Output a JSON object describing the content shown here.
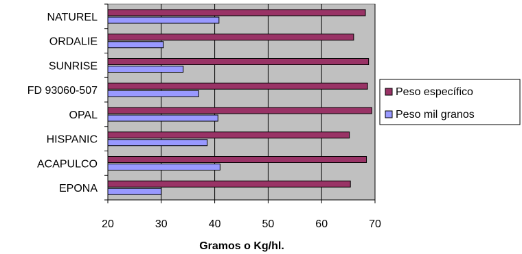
{
  "chart_data": {
    "type": "bar",
    "orientation": "horizontal",
    "categories": [
      "NATUREL",
      "ORDALIE",
      "SUNRISE",
      "FD 93060-507",
      "OPAL",
      "HISPANIC",
      "ACAPULCO",
      "EPONA"
    ],
    "series": [
      {
        "name": "Peso específico",
        "values": [
          68.2,
          66.0,
          68.8,
          68.6,
          69.4,
          65.2,
          68.4,
          65.4
        ]
      },
      {
        "name": "Peso mil granos",
        "values": [
          40.8,
          30.4,
          34.1,
          37.0,
          40.6,
          38.6,
          41.0,
          30.0
        ]
      }
    ],
    "xlabel": "Gramos o Kg/hl.",
    "ylabel": "",
    "xlim": [
      20,
      70
    ],
    "xticks": [
      20,
      30,
      40,
      50,
      60,
      70
    ],
    "grid": true,
    "legend_position": "right",
    "colors": {
      "series": [
        "#993366",
        "#9999ff"
      ],
      "plot_background": "#c0c0c0",
      "gridline": "#000000",
      "axis": "#000000"
    }
  }
}
